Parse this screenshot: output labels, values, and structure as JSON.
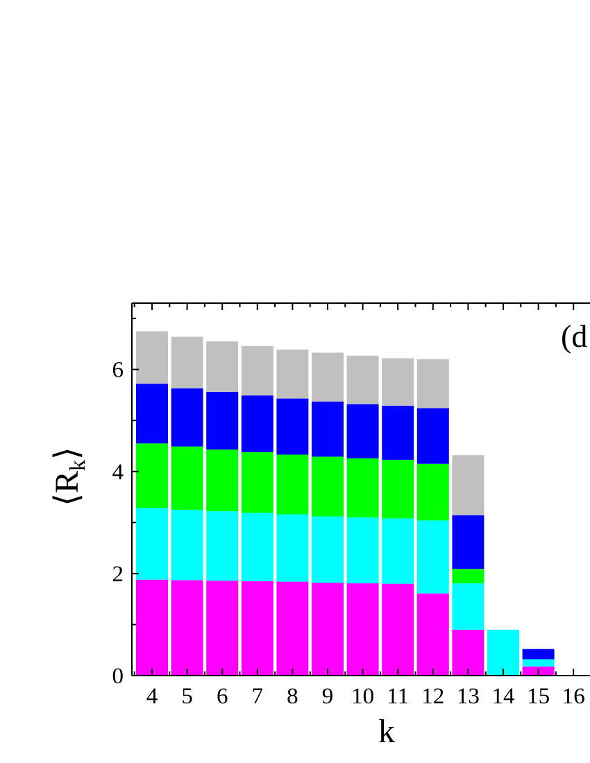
{
  "chart_data": {
    "type": "bar",
    "stacked": true,
    "panel_label": "(d",
    "xlabel": "k",
    "ylabel_main": "⟨R",
    "ylabel_sub": "k",
    "ylabel_close": "⟩",
    "categories": [
      "4",
      "5",
      "6",
      "7",
      "8",
      "9",
      "10",
      "11",
      "12",
      "13",
      "14",
      "15",
      "16"
    ],
    "ylim": [
      0,
      7.3
    ],
    "yticks": [
      0,
      2,
      4,
      6
    ],
    "ytick_labels": [
      "0",
      "2",
      "4",
      "6"
    ],
    "grid": false,
    "legend": "none",
    "series": [
      {
        "color": "#ff00ff",
        "values": [
          1.88,
          1.87,
          1.86,
          1.85,
          1.84,
          1.82,
          1.81,
          1.8,
          1.61,
          0.9,
          0,
          0.18,
          0
        ]
      },
      {
        "color": "#00ffff",
        "values": [
          1.41,
          1.38,
          1.36,
          1.34,
          1.32,
          1.3,
          1.29,
          1.28,
          1.43,
          0.91,
          0.9,
          0.14,
          0
        ]
      },
      {
        "color": "#00ff00",
        "values": [
          1.26,
          1.24,
          1.21,
          1.19,
          1.17,
          1.17,
          1.16,
          1.15,
          1.11,
          0.28,
          0,
          0,
          0
        ]
      },
      {
        "color": "#0000ff",
        "values": [
          1.17,
          1.14,
          1.13,
          1.11,
          1.1,
          1.08,
          1.06,
          1.06,
          1.09,
          1.05,
          0,
          0.2,
          0
        ]
      },
      {
        "color": "#c0c0c0",
        "values": [
          1.03,
          1.01,
          0.99,
          0.97,
          0.96,
          0.96,
          0.95,
          0.93,
          0.96,
          1.18,
          0,
          0,
          0
        ]
      }
    ]
  }
}
